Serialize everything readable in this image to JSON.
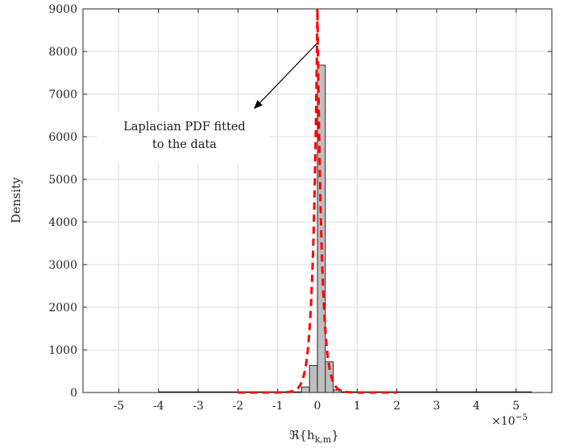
{
  "chart_data": {
    "type": "bar",
    "title": "",
    "xlabel": "ℜ{h_{k,m}}",
    "xlabel_main": "ℜ{h",
    "xlabel_sub": "k,m",
    "xlabel_close": "}",
    "ylabel": "Density",
    "xlim": [
      -5.9,
      5.9
    ],
    "ylim": [
      0,
      9000
    ],
    "x_scale_label": "×10",
    "x_scale_exp": "−5",
    "x_ticks": [
      -5,
      -4,
      -3,
      -2,
      -1,
      0,
      1,
      2,
      3,
      4,
      5
    ],
    "x_tick_labels": [
      "-5",
      "-4",
      "-3",
      "-2",
      "-1",
      "0",
      "1",
      "2",
      "3",
      "4",
      "5"
    ],
    "y_ticks": [
      0,
      1000,
      2000,
      3000,
      4000,
      5000,
      6000,
      7000,
      8000,
      9000
    ],
    "y_tick_labels": [
      "0",
      "1000",
      "2000",
      "3000",
      "4000",
      "5000",
      "6000",
      "7000",
      "8000",
      "9000"
    ],
    "grid": true,
    "histogram": {
      "bin_width": 0.2,
      "x_range": [
        -4.0,
        5.4
      ],
      "bins": [
        {
          "x": -0.5,
          "value": 10
        },
        {
          "x": -0.3,
          "value": 130
        },
        {
          "x": -0.1,
          "value": 630
        },
        {
          "x": 0.1,
          "value": 7680
        },
        {
          "x": 0.3,
          "value": 720
        },
        {
          "x": 0.5,
          "value": 60
        },
        {
          "x": 0.7,
          "value": 10
        }
      ]
    },
    "fit": {
      "type": "laplace",
      "mu": 0,
      "peak": 9000,
      "color": "#ff0000"
    },
    "annotation": {
      "lines": [
        "Laplacian PDF fitted",
        "to the data"
      ],
      "arrow_from": [
        0.0,
        8200
      ],
      "arrow_to": [
        -1.6,
        6650
      ]
    },
    "colors": {
      "bar_fill": "#bfbfbf",
      "bar_edge": "#000000",
      "fit_line": "#ff0000",
      "grid": "#dcdcdc",
      "axis": "#262626"
    }
  }
}
